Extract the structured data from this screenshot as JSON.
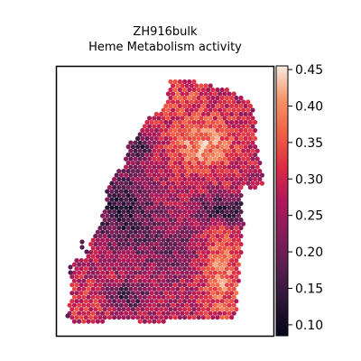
{
  "chart_data": {
    "type": "scatter",
    "title": "ZH916bulk",
    "subtitle": "Heme Metabolism activity",
    "colormap": "rocket",
    "colorbar": {
      "vmin": 0.085,
      "vmax": 0.455,
      "ticks": [
        0.1,
        0.15,
        0.2,
        0.25,
        0.3,
        0.35,
        0.4,
        0.45
      ],
      "tick_labels": [
        "0.10",
        "0.15",
        "0.20",
        "0.25",
        "0.30",
        "0.35",
        "0.40",
        "0.45"
      ]
    },
    "axes": {
      "x_ticks": "none",
      "y_ticks": "none",
      "frame": true
    },
    "spot_value_range": [
      0.09,
      0.45
    ]
  }
}
